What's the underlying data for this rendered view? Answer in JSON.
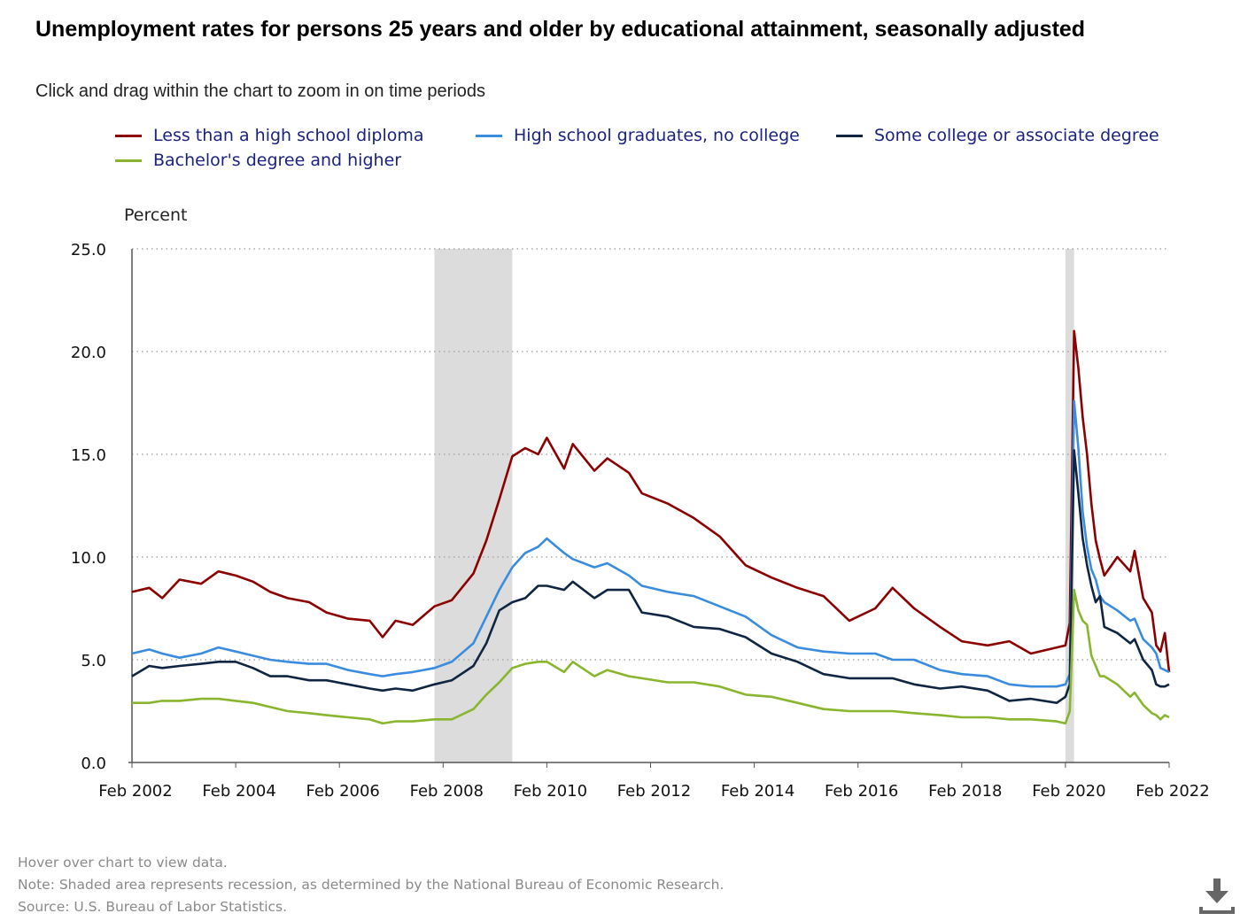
{
  "title": "Unemployment rates for persons 25 years and older by educational attainment, seasonally adjusted",
  "subtitle": "Click and drag within the chart to zoom in on time periods",
  "footer": {
    "hover": "Hover over chart to view data.",
    "note": "Note: Shaded area represents recession, as determined by the National Bureau of Economic Research.",
    "source": "Source: U.S. Bureau of Labor Statistics."
  },
  "icons": {
    "download": "download-icon"
  },
  "chart_data": {
    "type": "line",
    "ylabel": "Percent",
    "ylim": [
      0,
      25
    ],
    "yticks": [
      "0.0",
      "5.0",
      "10.0",
      "15.0",
      "20.0",
      "25.0"
    ],
    "xlim": [
      "2002-02",
      "2022-02"
    ],
    "xticks": [
      "Feb 2002",
      "Feb 2004",
      "Feb 2006",
      "Feb 2008",
      "Feb 2010",
      "Feb 2012",
      "Feb 2014",
      "Feb 2016",
      "Feb 2018",
      "Feb 2020",
      "Feb 2022"
    ],
    "grid": "horizontal dotted",
    "legend_position": "top",
    "recessions": [
      [
        "2007-12",
        "2009-06"
      ],
      [
        "2020-02",
        "2020-04"
      ]
    ],
    "series": [
      {
        "name": "Less than a high school diploma",
        "color": "#8b0000",
        "points": [
          [
            "2002-02",
            8.3
          ],
          [
            "2002-06",
            8.5
          ],
          [
            "2002-09",
            8.0
          ],
          [
            "2003-01",
            8.9
          ],
          [
            "2003-06",
            8.7
          ],
          [
            "2003-10",
            9.3
          ],
          [
            "2004-02",
            9.1
          ],
          [
            "2004-06",
            8.8
          ],
          [
            "2004-10",
            8.3
          ],
          [
            "2005-02",
            8.0
          ],
          [
            "2005-07",
            7.8
          ],
          [
            "2005-11",
            7.3
          ],
          [
            "2006-04",
            7.0
          ],
          [
            "2006-09",
            6.9
          ],
          [
            "2006-12",
            6.1
          ],
          [
            "2007-03",
            6.9
          ],
          [
            "2007-07",
            6.7
          ],
          [
            "2007-12",
            7.6
          ],
          [
            "2008-04",
            7.9
          ],
          [
            "2008-09",
            9.2
          ],
          [
            "2008-12",
            10.8
          ],
          [
            "2009-03",
            12.8
          ],
          [
            "2009-06",
            14.9
          ],
          [
            "2009-09",
            15.3
          ],
          [
            "2009-12",
            15.0
          ],
          [
            "2010-02",
            15.8
          ],
          [
            "2010-06",
            14.3
          ],
          [
            "2010-08",
            15.5
          ],
          [
            "2011-01",
            14.2
          ],
          [
            "2011-04",
            14.8
          ],
          [
            "2011-09",
            14.1
          ],
          [
            "2011-12",
            13.1
          ],
          [
            "2012-06",
            12.6
          ],
          [
            "2012-12",
            11.9
          ],
          [
            "2013-06",
            11.0
          ],
          [
            "2013-12",
            9.6
          ],
          [
            "2014-06",
            9.0
          ],
          [
            "2014-12",
            8.5
          ],
          [
            "2015-06",
            8.1
          ],
          [
            "2015-12",
            6.9
          ],
          [
            "2016-06",
            7.5
          ],
          [
            "2016-10",
            8.5
          ],
          [
            "2017-03",
            7.5
          ],
          [
            "2017-09",
            6.6
          ],
          [
            "2018-02",
            5.9
          ],
          [
            "2018-08",
            5.7
          ],
          [
            "2019-01",
            5.9
          ],
          [
            "2019-06",
            5.3
          ],
          [
            "2019-12",
            5.6
          ],
          [
            "2020-02",
            5.7
          ],
          [
            "2020-03",
            6.8
          ],
          [
            "2020-04",
            21.0
          ],
          [
            "2020-05",
            19.2
          ],
          [
            "2020-06",
            16.8
          ],
          [
            "2020-07",
            15.0
          ],
          [
            "2020-08",
            12.6
          ],
          [
            "2020-09",
            10.8
          ],
          [
            "2020-10",
            9.9
          ],
          [
            "2020-11",
            9.1
          ],
          [
            "2021-02",
            10.0
          ],
          [
            "2021-05",
            9.3
          ],
          [
            "2021-06",
            10.3
          ],
          [
            "2021-08",
            8.0
          ],
          [
            "2021-10",
            7.3
          ],
          [
            "2021-11",
            5.7
          ],
          [
            "2021-12",
            5.4
          ],
          [
            "2022-01",
            6.3
          ],
          [
            "2022-02",
            4.4
          ]
        ]
      },
      {
        "name": "High school graduates, no college",
        "color": "#3a8cde",
        "points": [
          [
            "2002-02",
            5.3
          ],
          [
            "2002-06",
            5.5
          ],
          [
            "2002-09",
            5.3
          ],
          [
            "2003-01",
            5.1
          ],
          [
            "2003-06",
            5.3
          ],
          [
            "2003-10",
            5.6
          ],
          [
            "2004-02",
            5.4
          ],
          [
            "2004-06",
            5.2
          ],
          [
            "2004-10",
            5.0
          ],
          [
            "2005-02",
            4.9
          ],
          [
            "2005-07",
            4.8
          ],
          [
            "2005-11",
            4.8
          ],
          [
            "2006-04",
            4.5
          ],
          [
            "2006-09",
            4.3
          ],
          [
            "2006-12",
            4.2
          ],
          [
            "2007-03",
            4.3
          ],
          [
            "2007-07",
            4.4
          ],
          [
            "2007-12",
            4.6
          ],
          [
            "2008-04",
            4.9
          ],
          [
            "2008-09",
            5.8
          ],
          [
            "2008-12",
            7.1
          ],
          [
            "2009-03",
            8.4
          ],
          [
            "2009-06",
            9.5
          ],
          [
            "2009-09",
            10.2
          ],
          [
            "2009-12",
            10.5
          ],
          [
            "2010-02",
            10.9
          ],
          [
            "2010-06",
            10.2
          ],
          [
            "2010-08",
            9.9
          ],
          [
            "2011-01",
            9.5
          ],
          [
            "2011-04",
            9.7
          ],
          [
            "2011-09",
            9.1
          ],
          [
            "2011-12",
            8.6
          ],
          [
            "2012-06",
            8.3
          ],
          [
            "2012-12",
            8.1
          ],
          [
            "2013-06",
            7.6
          ],
          [
            "2013-12",
            7.1
          ],
          [
            "2014-06",
            6.2
          ],
          [
            "2014-12",
            5.6
          ],
          [
            "2015-06",
            5.4
          ],
          [
            "2015-12",
            5.3
          ],
          [
            "2016-06",
            5.3
          ],
          [
            "2016-10",
            5.0
          ],
          [
            "2017-03",
            5.0
          ],
          [
            "2017-09",
            4.5
          ],
          [
            "2018-02",
            4.3
          ],
          [
            "2018-08",
            4.2
          ],
          [
            "2019-01",
            3.8
          ],
          [
            "2019-06",
            3.7
          ],
          [
            "2019-12",
            3.7
          ],
          [
            "2020-02",
            3.8
          ],
          [
            "2020-03",
            4.3
          ],
          [
            "2020-04",
            17.6
          ],
          [
            "2020-05",
            15.3
          ],
          [
            "2020-06",
            12.2
          ],
          [
            "2020-07",
            10.5
          ],
          [
            "2020-08",
            9.4
          ],
          [
            "2020-09",
            8.9
          ],
          [
            "2020-10",
            8.1
          ],
          [
            "2020-11",
            7.8
          ],
          [
            "2021-02",
            7.4
          ],
          [
            "2021-05",
            6.9
          ],
          [
            "2021-06",
            7.0
          ],
          [
            "2021-08",
            6.0
          ],
          [
            "2021-10",
            5.6
          ],
          [
            "2021-11",
            5.3
          ],
          [
            "2021-12",
            4.6
          ],
          [
            "2022-01",
            4.5
          ],
          [
            "2022-02",
            4.4
          ]
        ]
      },
      {
        "name": "Some college or associate degree",
        "color": "#0f2541",
        "points": [
          [
            "2002-02",
            4.2
          ],
          [
            "2002-06",
            4.7
          ],
          [
            "2002-09",
            4.6
          ],
          [
            "2003-01",
            4.7
          ],
          [
            "2003-06",
            4.8
          ],
          [
            "2003-10",
            4.9
          ],
          [
            "2004-02",
            4.9
          ],
          [
            "2004-06",
            4.6
          ],
          [
            "2004-10",
            4.2
          ],
          [
            "2005-02",
            4.2
          ],
          [
            "2005-07",
            4.0
          ],
          [
            "2005-11",
            4.0
          ],
          [
            "2006-04",
            3.8
          ],
          [
            "2006-09",
            3.6
          ],
          [
            "2006-12",
            3.5
          ],
          [
            "2007-03",
            3.6
          ],
          [
            "2007-07",
            3.5
          ],
          [
            "2007-12",
            3.8
          ],
          [
            "2008-04",
            4.0
          ],
          [
            "2008-09",
            4.7
          ],
          [
            "2008-12",
            5.8
          ],
          [
            "2009-03",
            7.4
          ],
          [
            "2009-06",
            7.8
          ],
          [
            "2009-09",
            8.0
          ],
          [
            "2009-12",
            8.6
          ],
          [
            "2010-02",
            8.6
          ],
          [
            "2010-06",
            8.4
          ],
          [
            "2010-08",
            8.8
          ],
          [
            "2011-01",
            8.0
          ],
          [
            "2011-04",
            8.4
          ],
          [
            "2011-09",
            8.4
          ],
          [
            "2011-12",
            7.3
          ],
          [
            "2012-06",
            7.1
          ],
          [
            "2012-12",
            6.6
          ],
          [
            "2013-06",
            6.5
          ],
          [
            "2013-12",
            6.1
          ],
          [
            "2014-06",
            5.3
          ],
          [
            "2014-12",
            4.9
          ],
          [
            "2015-06",
            4.3
          ],
          [
            "2015-12",
            4.1
          ],
          [
            "2016-06",
            4.1
          ],
          [
            "2016-10",
            4.1
          ],
          [
            "2017-03",
            3.8
          ],
          [
            "2017-09",
            3.6
          ],
          [
            "2018-02",
            3.7
          ],
          [
            "2018-08",
            3.5
          ],
          [
            "2019-01",
            3.0
          ],
          [
            "2019-06",
            3.1
          ],
          [
            "2019-12",
            2.9
          ],
          [
            "2020-02",
            3.2
          ],
          [
            "2020-03",
            3.8
          ],
          [
            "2020-04",
            15.2
          ],
          [
            "2020-05",
            13.1
          ],
          [
            "2020-06",
            10.9
          ],
          [
            "2020-07",
            9.6
          ],
          [
            "2020-08",
            8.6
          ],
          [
            "2020-09",
            7.8
          ],
          [
            "2020-10",
            8.1
          ],
          [
            "2020-11",
            6.6
          ],
          [
            "2021-02",
            6.3
          ],
          [
            "2021-05",
            5.8
          ],
          [
            "2021-06",
            6.0
          ],
          [
            "2021-08",
            5.0
          ],
          [
            "2021-10",
            4.5
          ],
          [
            "2021-11",
            3.8
          ],
          [
            "2021-12",
            3.7
          ],
          [
            "2022-01",
            3.7
          ],
          [
            "2022-02",
            3.8
          ]
        ]
      },
      {
        "name": "Bachelor's degree and higher",
        "color": "#8ab52e",
        "points": [
          [
            "2002-02",
            2.9
          ],
          [
            "2002-06",
            2.9
          ],
          [
            "2002-09",
            3.0
          ],
          [
            "2003-01",
            3.0
          ],
          [
            "2003-06",
            3.1
          ],
          [
            "2003-10",
            3.1
          ],
          [
            "2004-02",
            3.0
          ],
          [
            "2004-06",
            2.9
          ],
          [
            "2004-10",
            2.7
          ],
          [
            "2005-02",
            2.5
          ],
          [
            "2005-07",
            2.4
          ],
          [
            "2005-11",
            2.3
          ],
          [
            "2006-04",
            2.2
          ],
          [
            "2006-09",
            2.1
          ],
          [
            "2006-12",
            1.9
          ],
          [
            "2007-03",
            2.0
          ],
          [
            "2007-07",
            2.0
          ],
          [
            "2007-12",
            2.1
          ],
          [
            "2008-04",
            2.1
          ],
          [
            "2008-09",
            2.6
          ],
          [
            "2008-12",
            3.3
          ],
          [
            "2009-03",
            3.9
          ],
          [
            "2009-06",
            4.6
          ],
          [
            "2009-09",
            4.8
          ],
          [
            "2009-12",
            4.9
          ],
          [
            "2010-02",
            4.9
          ],
          [
            "2010-06",
            4.4
          ],
          [
            "2010-08",
            4.9
          ],
          [
            "2011-01",
            4.2
          ],
          [
            "2011-04",
            4.5
          ],
          [
            "2011-09",
            4.2
          ],
          [
            "2011-12",
            4.1
          ],
          [
            "2012-06",
            3.9
          ],
          [
            "2012-12",
            3.9
          ],
          [
            "2013-06",
            3.7
          ],
          [
            "2013-12",
            3.3
          ],
          [
            "2014-06",
            3.2
          ],
          [
            "2014-12",
            2.9
          ],
          [
            "2015-06",
            2.6
          ],
          [
            "2015-12",
            2.5
          ],
          [
            "2016-06",
            2.5
          ],
          [
            "2016-10",
            2.5
          ],
          [
            "2017-03",
            2.4
          ],
          [
            "2017-09",
            2.3
          ],
          [
            "2018-02",
            2.2
          ],
          [
            "2018-08",
            2.2
          ],
          [
            "2019-01",
            2.1
          ],
          [
            "2019-06",
            2.1
          ],
          [
            "2019-12",
            2.0
          ],
          [
            "2020-02",
            1.9
          ],
          [
            "2020-03",
            2.5
          ],
          [
            "2020-04",
            8.4
          ],
          [
            "2020-05",
            7.4
          ],
          [
            "2020-06",
            6.9
          ],
          [
            "2020-07",
            6.7
          ],
          [
            "2020-08",
            5.2
          ],
          [
            "2020-09",
            4.7
          ],
          [
            "2020-10",
            4.2
          ],
          [
            "2020-11",
            4.2
          ],
          [
            "2021-02",
            3.8
          ],
          [
            "2021-05",
            3.2
          ],
          [
            "2021-06",
            3.4
          ],
          [
            "2021-08",
            2.8
          ],
          [
            "2021-10",
            2.4
          ],
          [
            "2021-11",
            2.3
          ],
          [
            "2021-12",
            2.1
          ],
          [
            "2022-01",
            2.3
          ],
          [
            "2022-02",
            2.2
          ]
        ]
      }
    ]
  }
}
